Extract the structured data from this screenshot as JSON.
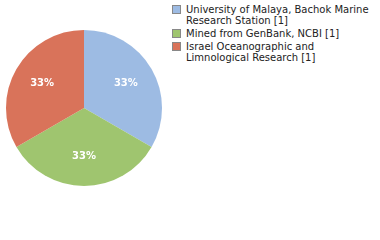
{
  "chart_data": {
    "type": "pie",
    "categories": [
      "University of Malaya, Bachok Marine Research Station [1]",
      "Mined from GenBank, NCBI [1]",
      "Israel Oceanographic and Limnological Research [1]"
    ],
    "values": [
      33,
      33,
      33
    ],
    "value_labels": [
      "33%",
      "33%",
      "33%"
    ],
    "colors": [
      "#9dbbe3",
      "#9fc56f",
      "#d9735a"
    ],
    "data_labels": true,
    "legend": "top-right"
  }
}
